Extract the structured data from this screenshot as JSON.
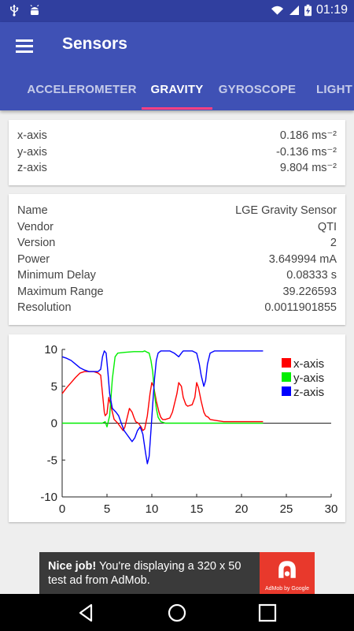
{
  "status_bar": {
    "time": "01:19",
    "icons": [
      "usb-icon",
      "android-debug-icon",
      "wifi-icon",
      "signal-icon",
      "battery-charging-icon"
    ]
  },
  "app_bar": {
    "title": "Sensors",
    "menu_icon": "hamburger-menu-icon"
  },
  "tabs": [
    {
      "label": "ACCELEROMETER",
      "active": false
    },
    {
      "label": "GRAVITY",
      "active": true
    },
    {
      "label": "GYROSCOPE",
      "active": false
    },
    {
      "label": "LIGHT",
      "active": false
    }
  ],
  "readings": [
    {
      "label": "x-axis",
      "value": "0.186 ms⁻²"
    },
    {
      "label": "y-axis",
      "value": "-0.136 ms⁻²"
    },
    {
      "label": "z-axis",
      "value": "9.804 ms⁻²"
    }
  ],
  "info": [
    {
      "label": "Name",
      "value": "LGE Gravity Sensor"
    },
    {
      "label": "Vendor",
      "value": "QTI"
    },
    {
      "label": "Version",
      "value": "2"
    },
    {
      "label": "Power",
      "value": "3.649994 mA"
    },
    {
      "label": "Minimum Delay",
      "value": "0.08333 s"
    },
    {
      "label": "Maximum Range",
      "value": "39.226593"
    },
    {
      "label": "Resolution",
      "value": "0.0011901855"
    }
  ],
  "chart_data": {
    "type": "line",
    "xlim": [
      0,
      30
    ],
    "ylim": [
      -10,
      10
    ],
    "x_ticks": [
      0,
      5,
      10,
      15,
      20,
      25,
      30
    ],
    "y_ticks": [
      -10,
      -5,
      0,
      5,
      10
    ],
    "legend_position": "top-right",
    "grid": false,
    "series": [
      {
        "name": "x-axis",
        "color": "#ff0000",
        "points": [
          [
            0,
            4
          ],
          [
            0.5,
            4.8
          ],
          [
            1,
            5.5
          ],
          [
            1.5,
            6.2
          ],
          [
            2,
            6.8
          ],
          [
            2.5,
            7
          ],
          [
            3,
            7
          ],
          [
            3.5,
            7
          ],
          [
            4,
            6.8
          ],
          [
            4.3,
            6.5
          ],
          [
            4.5,
            4
          ],
          [
            4.7,
            1.5
          ],
          [
            4.8,
            1
          ],
          [
            5,
            1.3
          ],
          [
            5.2,
            3.5
          ],
          [
            5.5,
            2
          ],
          [
            5.8,
            0.5
          ],
          [
            6.2,
            0
          ],
          [
            6.5,
            -0.5
          ],
          [
            6.8,
            -1
          ],
          [
            7,
            -0.5
          ],
          [
            7.2,
            0.5
          ],
          [
            7.5,
            2
          ],
          [
            7.8,
            1.5
          ],
          [
            8,
            0.8
          ],
          [
            8.2,
            0.2
          ],
          [
            8.5,
            0
          ],
          [
            8.8,
            -0.5
          ],
          [
            9,
            -1
          ],
          [
            9.2,
            -0.8
          ],
          [
            9.5,
            1
          ],
          [
            9.8,
            4
          ],
          [
            10,
            5.5
          ],
          [
            10.2,
            5
          ],
          [
            10.5,
            3
          ],
          [
            10.8,
            1.5
          ],
          [
            11,
            0.8
          ],
          [
            11.2,
            0.5
          ],
          [
            11.5,
            0.5
          ],
          [
            12,
            0.7
          ],
          [
            12.3,
            1.5
          ],
          [
            12.5,
            2.5
          ],
          [
            12.8,
            4
          ],
          [
            13,
            5.5
          ],
          [
            13.3,
            5
          ],
          [
            13.5,
            3.5
          ],
          [
            13.8,
            2.5
          ],
          [
            14,
            2.3
          ],
          [
            14.5,
            2.5
          ],
          [
            14.8,
            3.5
          ],
          [
            15,
            5.5
          ],
          [
            15.2,
            4.8
          ],
          [
            15.5,
            3
          ],
          [
            15.8,
            1.5
          ],
          [
            16,
            1
          ],
          [
            16.3,
            0.8
          ],
          [
            16.5,
            0.5
          ],
          [
            17,
            0.4
          ],
          [
            17.5,
            0.3
          ],
          [
            18,
            0.2
          ],
          [
            19,
            0.2
          ],
          [
            20,
            0.2
          ],
          [
            21,
            0.2
          ],
          [
            22,
            0.2
          ],
          [
            22.4,
            0.2
          ]
        ]
      },
      {
        "name": "y-axis",
        "color": "#00ee00",
        "points": [
          [
            0,
            0
          ],
          [
            1,
            0
          ],
          [
            2,
            0
          ],
          [
            3,
            0
          ],
          [
            4,
            0
          ],
          [
            4.5,
            0
          ],
          [
            4.8,
            0.2
          ],
          [
            5,
            -0.5
          ],
          [
            5.3,
            1
          ],
          [
            5.6,
            6
          ],
          [
            5.9,
            9
          ],
          [
            6.2,
            9.5
          ],
          [
            7,
            9.6
          ],
          [
            8,
            9.7
          ],
          [
            9,
            9.7
          ],
          [
            9.2,
            9.8
          ],
          [
            9.5,
            9.6
          ],
          [
            9.7,
            9.5
          ],
          [
            9.9,
            8.5
          ],
          [
            10.1,
            7
          ],
          [
            10.3,
            4
          ],
          [
            10.5,
            2
          ],
          [
            10.7,
            0.8
          ],
          [
            11,
            0.2
          ],
          [
            11.5,
            0
          ],
          [
            12,
            0
          ],
          [
            13,
            0
          ],
          [
            14,
            0
          ],
          [
            15,
            0
          ],
          [
            16,
            0
          ],
          [
            17,
            0
          ],
          [
            18,
            0
          ],
          [
            20,
            0
          ],
          [
            22.4,
            0
          ]
        ]
      },
      {
        "name": "z-axis",
        "color": "#0000ff",
        "points": [
          [
            0,
            9
          ],
          [
            0.5,
            8.8
          ],
          [
            1,
            8.5
          ],
          [
            1.5,
            8
          ],
          [
            2,
            7.5
          ],
          [
            2.5,
            7.2
          ],
          [
            3,
            7
          ],
          [
            3.5,
            7
          ],
          [
            4,
            7
          ],
          [
            4.3,
            7.3
          ],
          [
            4.5,
            9
          ],
          [
            4.7,
            9.8
          ],
          [
            4.9,
            9.5
          ],
          [
            5.1,
            7
          ],
          [
            5.3,
            4
          ],
          [
            5.6,
            2
          ],
          [
            6,
            1.5
          ],
          [
            6.3,
            1
          ],
          [
            6.6,
            0
          ],
          [
            6.9,
            -1
          ],
          [
            7.2,
            -1.5
          ],
          [
            7.5,
            -2
          ],
          [
            7.8,
            -2.5
          ],
          [
            8.1,
            -2
          ],
          [
            8.4,
            -1
          ],
          [
            8.7,
            -0.5
          ],
          [
            9,
            -1.5
          ],
          [
            9.3,
            -4
          ],
          [
            9.5,
            -5.5
          ],
          [
            9.7,
            -4.5
          ],
          [
            9.9,
            -1
          ],
          [
            10.1,
            2.5
          ],
          [
            10.3,
            6
          ],
          [
            10.5,
            8.5
          ],
          [
            10.7,
            9.5
          ],
          [
            11,
            9.8
          ],
          [
            11.5,
            9.8
          ],
          [
            12,
            9.8
          ],
          [
            12.5,
            9.5
          ],
          [
            13,
            9
          ],
          [
            13.3,
            9.5
          ],
          [
            13.5,
            9.8
          ],
          [
            14,
            9.8
          ],
          [
            14.5,
            9.8
          ],
          [
            15,
            9.5
          ],
          [
            15.3,
            8
          ],
          [
            15.5,
            6.5
          ],
          [
            15.8,
            5
          ],
          [
            16,
            5.8
          ],
          [
            16.2,
            8
          ],
          [
            16.5,
            9.5
          ],
          [
            17,
            9.8
          ],
          [
            18,
            9.8
          ],
          [
            19,
            9.8
          ],
          [
            20,
            9.8
          ],
          [
            21,
            9.8
          ],
          [
            22.4,
            9.8
          ]
        ]
      }
    ]
  },
  "ad": {
    "bold_text": "Nice job!",
    "text": " You're displaying a 320 x 50 test ad from AdMob.",
    "logo_caption": "AdMob by Google"
  },
  "nav": {
    "back_icon": "back-icon",
    "home_icon": "home-icon",
    "recents_icon": "recents-icon"
  }
}
